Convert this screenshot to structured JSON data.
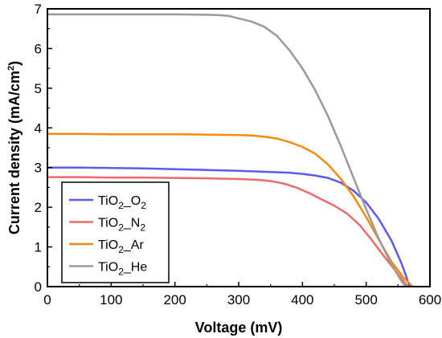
{
  "chart_data": {
    "type": "line",
    "xlabel": "Voltage (mV)",
    "ylabel": {
      "base": "Current density (mA/cm",
      "sup": "2",
      "tail": ")"
    },
    "xlim": [
      0,
      600
    ],
    "ylim": [
      0,
      7
    ],
    "xticks": [
      0,
      100,
      200,
      300,
      400,
      500,
      600
    ],
    "yticks": [
      0,
      1,
      2,
      3,
      4,
      5,
      6,
      7
    ],
    "grid": false,
    "legend_position": "bottom-left",
    "series": [
      {
        "name": {
          "base": "TiO",
          "sub": "2",
          "tail": "_O",
          "sub2": "2"
        },
        "color": "#5a5aee",
        "points": [
          [
            0,
            3.0
          ],
          [
            50,
            3.0
          ],
          [
            100,
            2.99
          ],
          [
            150,
            2.98
          ],
          [
            200,
            2.96
          ],
          [
            250,
            2.94
          ],
          [
            300,
            2.92
          ],
          [
            350,
            2.89
          ],
          [
            380,
            2.87
          ],
          [
            400,
            2.84
          ],
          [
            420,
            2.8
          ],
          [
            440,
            2.74
          ],
          [
            460,
            2.62
          ],
          [
            480,
            2.42
          ],
          [
            500,
            2.12
          ],
          [
            520,
            1.7
          ],
          [
            540,
            1.15
          ],
          [
            555,
            0.6
          ],
          [
            563,
            0.25
          ],
          [
            568,
            0.0
          ]
        ]
      },
      {
        "name": {
          "base": "TiO",
          "sub": "2",
          "tail": "_N",
          "sub2": "2"
        },
        "color": "#ee6a6a",
        "points": [
          [
            0,
            2.76
          ],
          [
            50,
            2.76
          ],
          [
            100,
            2.75
          ],
          [
            150,
            2.75
          ],
          [
            200,
            2.74
          ],
          [
            250,
            2.73
          ],
          [
            300,
            2.71
          ],
          [
            330,
            2.69
          ],
          [
            350,
            2.66
          ],
          [
            370,
            2.6
          ],
          [
            390,
            2.5
          ],
          [
            410,
            2.36
          ],
          [
            430,
            2.2
          ],
          [
            450,
            2.04
          ],
          [
            470,
            1.84
          ],
          [
            490,
            1.55
          ],
          [
            510,
            1.15
          ],
          [
            530,
            0.72
          ],
          [
            550,
            0.32
          ],
          [
            565,
            0.0
          ]
        ]
      },
      {
        "name": {
          "base": "TiO",
          "sub": "2",
          "tail": "_Ar",
          "sub2": ""
        },
        "color": "#f58a0f",
        "points": [
          [
            0,
            3.85
          ],
          [
            50,
            3.85
          ],
          [
            100,
            3.84
          ],
          [
            150,
            3.84
          ],
          [
            200,
            3.84
          ],
          [
            250,
            3.83
          ],
          [
            300,
            3.82
          ],
          [
            320,
            3.81
          ],
          [
            340,
            3.78
          ],
          [
            360,
            3.73
          ],
          [
            380,
            3.64
          ],
          [
            400,
            3.52
          ],
          [
            420,
            3.35
          ],
          [
            440,
            3.08
          ],
          [
            460,
            2.72
          ],
          [
            480,
            2.28
          ],
          [
            500,
            1.75
          ],
          [
            520,
            1.18
          ],
          [
            540,
            0.62
          ],
          [
            560,
            0.2
          ],
          [
            573,
            0.0
          ]
        ]
      },
      {
        "name": {
          "base": "TiO",
          "sub": "2",
          "tail": "_He",
          "sub2": ""
        },
        "color": "#9a9a9a",
        "points": [
          [
            0,
            6.86
          ],
          [
            50,
            6.86
          ],
          [
            100,
            6.86
          ],
          [
            150,
            6.86
          ],
          [
            200,
            6.86
          ],
          [
            250,
            6.85
          ],
          [
            270,
            6.84
          ],
          [
            285,
            6.82
          ],
          [
            300,
            6.76
          ],
          [
            320,
            6.68
          ],
          [
            340,
            6.55
          ],
          [
            360,
            6.32
          ],
          [
            380,
            5.95
          ],
          [
            400,
            5.5
          ],
          [
            420,
            4.95
          ],
          [
            440,
            4.3
          ],
          [
            460,
            3.55
          ],
          [
            480,
            2.75
          ],
          [
            500,
            1.95
          ],
          [
            520,
            1.2
          ],
          [
            540,
            0.55
          ],
          [
            555,
            0.15
          ],
          [
            562,
            0.0
          ]
        ]
      }
    ]
  }
}
